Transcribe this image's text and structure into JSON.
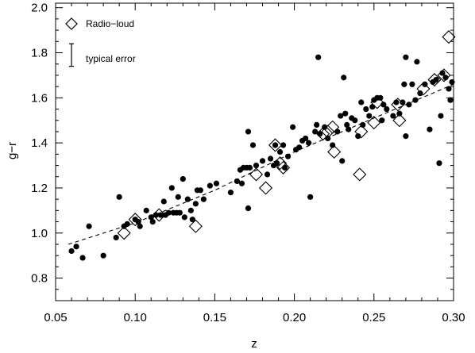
{
  "chart_data": {
    "type": "scatter",
    "title": "",
    "xlabel": "z",
    "ylabel": "g−r",
    "xlim": [
      0.05,
      0.3
    ],
    "ylim": [
      0.7,
      2.02
    ],
    "grid": false,
    "x_ticks": [
      {
        "value": 0.05,
        "label": "0.05"
      },
      {
        "value": 0.1,
        "label": "0.10"
      },
      {
        "value": 0.15,
        "label": "0.15"
      },
      {
        "value": 0.2,
        "label": "0.20"
      },
      {
        "value": 0.25,
        "label": "0.25"
      },
      {
        "value": 0.3,
        "label": "0.30"
      }
    ],
    "y_ticks": [
      {
        "value": 0.8,
        "label": "0.8"
      },
      {
        "value": 1.0,
        "label": "1.0"
      },
      {
        "value": 1.2,
        "label": "1.2"
      },
      {
        "value": 1.4,
        "label": "1.4"
      },
      {
        "value": 1.6,
        "label": "1.6"
      },
      {
        "value": 1.8,
        "label": "1.8"
      },
      {
        "value": 2.0,
        "label": "2.0"
      }
    ],
    "legend": {
      "placement": "top-left",
      "radio_loud_label": "Radio−loud",
      "error_label": "typical error",
      "typical_error": [
        1.74,
        1.84
      ]
    },
    "fit_line": {
      "style": "dashed",
      "points": [
        [
          0.058,
          0.95
        ],
        [
          0.1,
          1.045
        ],
        [
          0.15,
          1.19
        ],
        [
          0.2,
          1.36
        ],
        [
          0.25,
          1.51
        ],
        [
          0.3,
          1.66
        ]
      ]
    },
    "series": [
      {
        "marker": "filled-circle",
        "points": [
          [
            0.06,
            0.92
          ],
          [
            0.063,
            0.94
          ],
          [
            0.067,
            0.89
          ],
          [
            0.071,
            1.03
          ],
          [
            0.08,
            0.9
          ],
          [
            0.088,
            0.98
          ],
          [
            0.09,
            1.16
          ],
          [
            0.093,
            1.03
          ],
          [
            0.095,
            1.04
          ],
          [
            0.1,
            1.06
          ],
          [
            0.102,
            1.05
          ],
          [
            0.103,
            1.03
          ],
          [
            0.107,
            1.1
          ],
          [
            0.11,
            1.07
          ],
          [
            0.111,
            1.05
          ],
          [
            0.113,
            1.08
          ],
          [
            0.116,
            1.08
          ],
          [
            0.118,
            1.14
          ],
          [
            0.119,
            1.08
          ],
          [
            0.121,
            1.09
          ],
          [
            0.123,
            1.2
          ],
          [
            0.124,
            1.09
          ],
          [
            0.126,
            1.09
          ],
          [
            0.127,
            1.16
          ],
          [
            0.128,
            1.09
          ],
          [
            0.13,
            1.24
          ],
          [
            0.131,
            1.07
          ],
          [
            0.133,
            1.15
          ],
          [
            0.135,
            1.1
          ],
          [
            0.136,
            1.06
          ],
          [
            0.138,
            1.13
          ],
          [
            0.139,
            1.19
          ],
          [
            0.141,
            1.19
          ],
          [
            0.143,
            1.15
          ],
          [
            0.147,
            1.21
          ],
          [
            0.151,
            1.22
          ],
          [
            0.16,
            1.18
          ],
          [
            0.164,
            1.23
          ],
          [
            0.166,
            1.28
          ],
          [
            0.167,
            1.22
          ],
          [
            0.168,
            1.29
          ],
          [
            0.17,
            1.29
          ],
          [
            0.171,
            1.11
          ],
          [
            0.171,
            1.45
          ],
          [
            0.172,
            1.29
          ],
          [
            0.174,
            1.39
          ],
          [
            0.176,
            1.3
          ],
          [
            0.18,
            1.32
          ],
          [
            0.183,
            1.26
          ],
          [
            0.185,
            1.33
          ],
          [
            0.187,
            1.3
          ],
          [
            0.188,
            1.39
          ],
          [
            0.189,
            1.31
          ],
          [
            0.191,
            1.36
          ],
          [
            0.193,
            1.39
          ],
          [
            0.194,
            1.29
          ],
          [
            0.196,
            1.34
          ],
          [
            0.199,
            1.47
          ],
          [
            0.201,
            1.37
          ],
          [
            0.203,
            1.38
          ],
          [
            0.205,
            1.41
          ],
          [
            0.207,
            1.42
          ],
          [
            0.209,
            1.4
          ],
          [
            0.21,
            1.16
          ],
          [
            0.213,
            1.45
          ],
          [
            0.214,
            1.48
          ],
          [
            0.215,
            1.78
          ],
          [
            0.216,
            1.44
          ],
          [
            0.219,
            1.47
          ],
          [
            0.221,
            1.42
          ],
          [
            0.224,
            1.39
          ],
          [
            0.227,
            1.45
          ],
          [
            0.229,
            1.52
          ],
          [
            0.23,
            1.32
          ],
          [
            0.231,
            1.69
          ],
          [
            0.232,
            1.53
          ],
          [
            0.233,
            1.48
          ],
          [
            0.234,
            1.46
          ],
          [
            0.236,
            1.51
          ],
          [
            0.238,
            1.5
          ],
          [
            0.24,
            1.43
          ],
          [
            0.242,
            1.58
          ],
          [
            0.243,
            1.48
          ],
          [
            0.245,
            1.55
          ],
          [
            0.247,
            1.52
          ],
          [
            0.249,
            1.56
          ],
          [
            0.25,
            1.59
          ],
          [
            0.252,
            1.6
          ],
          [
            0.254,
            1.6
          ],
          [
            0.255,
            1.5
          ],
          [
            0.256,
            1.57
          ],
          [
            0.258,
            1.55
          ],
          [
            0.262,
            1.52
          ],
          [
            0.264,
            1.58
          ],
          [
            0.266,
            1.53
          ],
          [
            0.268,
            1.58
          ],
          [
            0.269,
            1.66
          ],
          [
            0.27,
            1.43
          ],
          [
            0.27,
            1.78
          ],
          [
            0.272,
            1.57
          ],
          [
            0.274,
            1.66
          ],
          [
            0.276,
            1.59
          ],
          [
            0.277,
            1.76
          ],
          [
            0.279,
            1.62
          ],
          [
            0.282,
            1.66
          ],
          [
            0.285,
            1.46
          ],
          [
            0.287,
            1.67
          ],
          [
            0.289,
            1.68
          ],
          [
            0.291,
            1.31
          ],
          [
            0.292,
            1.52
          ],
          [
            0.293,
            1.71
          ],
          [
            0.295,
            1.69
          ],
          [
            0.297,
            1.64
          ],
          [
            0.298,
            1.59
          ],
          [
            0.299,
            1.67
          ]
        ]
      },
      {
        "name": "Radio−loud",
        "marker": "open-diamond",
        "points": [
          [
            0.093,
            1.0
          ],
          [
            0.1,
            1.06
          ],
          [
            0.115,
            1.08
          ],
          [
            0.138,
            1.03
          ],
          [
            0.176,
            1.26
          ],
          [
            0.182,
            1.2
          ],
          [
            0.188,
            1.39
          ],
          [
            0.191,
            1.31
          ],
          [
            0.193,
            1.29
          ],
          [
            0.218,
            1.44
          ],
          [
            0.221,
            1.45
          ],
          [
            0.224,
            1.47
          ],
          [
            0.225,
            1.36
          ],
          [
            0.241,
            1.26
          ],
          [
            0.242,
            1.45
          ],
          [
            0.25,
            1.49
          ],
          [
            0.252,
            1.58
          ],
          [
            0.265,
            1.57
          ],
          [
            0.266,
            1.5
          ],
          [
            0.281,
            1.64
          ],
          [
            0.288,
            1.68
          ],
          [
            0.294,
            1.7
          ],
          [
            0.297,
            1.87
          ]
        ]
      }
    ]
  }
}
